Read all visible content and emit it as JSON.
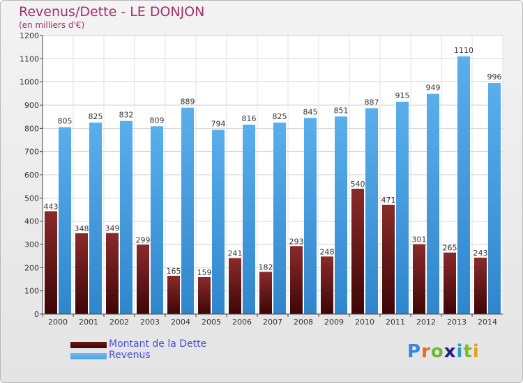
{
  "header": {
    "title": "Revenus/Dette - LE DONJON",
    "subtitle": "(en milliers d'€)"
  },
  "legend": {
    "items": [
      {
        "label": "Montant de la Dette",
        "color": "#6b1616"
      },
      {
        "label": "Revenus",
        "color": "#4da3e4"
      }
    ]
  },
  "logo": {
    "text": "Proxiti",
    "letters": [
      "P",
      "r",
      "o",
      "x",
      "i",
      "t",
      "i"
    ],
    "colors": [
      "#3a86d6",
      "#e86a1c",
      "#6bb82e",
      "#1f1f8f",
      "#2b9bd6",
      "#7dbb2b",
      "#e8a01c"
    ]
  },
  "colors": {
    "debt": "#6b1616",
    "revenue": "#4da3e4",
    "title": "#a0306a"
  },
  "chart_data": {
    "type": "bar",
    "categories": [
      "2000",
      "2001",
      "2002",
      "2003",
      "2004",
      "2005",
      "2006",
      "2007",
      "2008",
      "2009",
      "2010",
      "2011",
      "2012",
      "2013",
      "2014"
    ],
    "series": [
      {
        "name": "Montant de la Dette",
        "values": [
          443,
          348,
          349,
          299,
          165,
          159,
          241,
          182,
          293,
          248,
          540,
          471,
          301,
          265,
          243
        ]
      },
      {
        "name": "Revenus",
        "values": [
          805,
          825,
          832,
          809,
          889,
          794,
          816,
          825,
          845,
          851,
          887,
          915,
          949,
          1110,
          996
        ]
      }
    ],
    "ylim": [
      0,
      1200
    ],
    "yticks": [
      0,
      100,
      200,
      300,
      400,
      500,
      600,
      700,
      800,
      900,
      1000,
      1100,
      1200
    ],
    "grid": true,
    "legend_position": "bottom-left"
  }
}
